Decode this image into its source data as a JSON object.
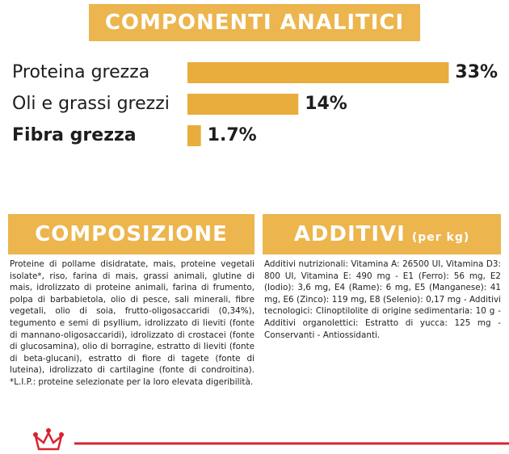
{
  "chart_data": {
    "type": "bar",
    "orientation": "horizontal",
    "title": "COMPONENTI ANALITICI",
    "categories": [
      "Proteina grezza",
      "Oli e grassi grezzi",
      "Fibra grezza"
    ],
    "values": [
      33,
      14,
      1.7
    ],
    "value_labels": [
      "33%",
      "14%",
      "1.7%"
    ],
    "color": "#e8ad3c"
  },
  "composition": {
    "title": "COMPOSIZIONE",
    "text": "Proteine di pollame disidratate, mais, proteine vegetali isolate*, riso, farina di mais, grassi animali, glutine di mais, idrolizzato di proteine animali, farina di frumento, polpa di barbabietola, olio di pesce, sali minerali, fibre vegetali, olio di soia, frutto-oligosaccaridi (0,34%), tegumento e semi di psyllium, idrolizzato di lieviti (fonte di mannano-oligosaccaridi), idrolizzato di crostacei (fonte di glucosamina), olio di borragine, estratto di lieviti (fonte di beta-glucani), estratto di fiore di tagete (fonte di luteina), idrolizzato di cartilagine (fonte di condroitina). *L.I.P.: proteine selezionate per la loro elevata digeribilità."
  },
  "additives": {
    "title": "ADDITIVI",
    "unit": "(per kg)",
    "text": "Additivi nutrizionali: Vitamina A: 26500 UI, Vitamina D3: 800 UI, Vitamina E: 490 mg - E1 (Ferro): 56 mg, E2 (Iodio): 3,6 mg, E4 (Rame): 6 mg, E5 (Manganese): 41 mg, E6 (Zinco): 119 mg, E8 (Selenio): 0,17 mg - Additivi tecnologici: Clinoptilolite di origine sedimentaria: 10 g - Additivi organolettici: Estratto di yucca: 125 mg - Conservanti - Antiossidanti."
  }
}
